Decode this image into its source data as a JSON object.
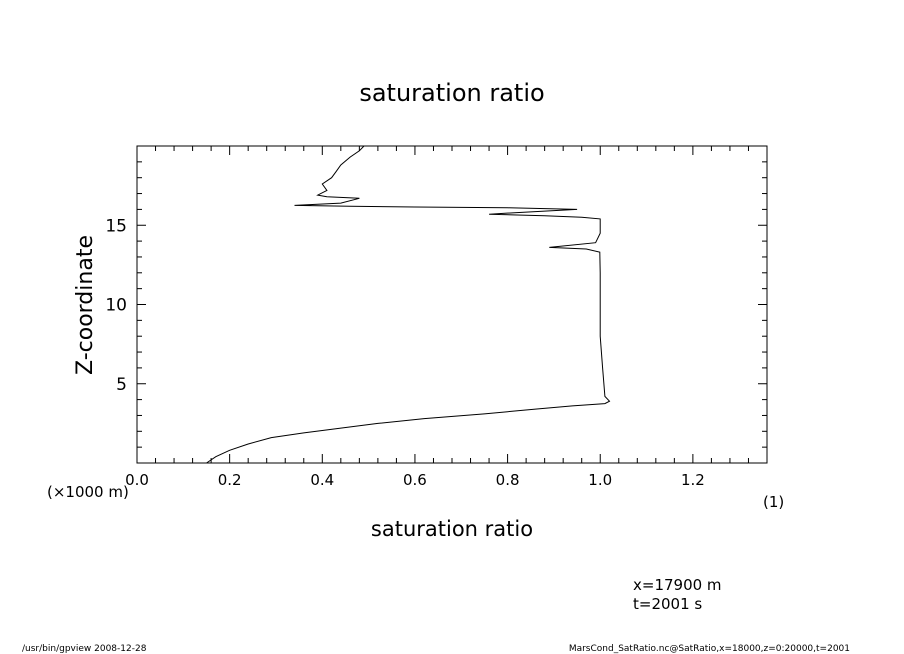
{
  "chart_data": {
    "type": "line",
    "title": "saturation ratio",
    "xlabel": "saturation ratio",
    "ylabel": "Z-coordinate",
    "x_unit_note": "(1)",
    "y_unit_note": "(×1000 m)",
    "xlim": [
      0.0,
      1.36
    ],
    "ylim": [
      0.0,
      20.0
    ],
    "x_ticks": [
      0.0,
      0.2,
      0.4,
      0.6,
      0.8,
      1.0,
      1.2
    ],
    "x_tick_labels": [
      "0.0",
      "0.2",
      "0.4",
      "0.6",
      "0.8",
      "1.0",
      "1.2"
    ],
    "y_ticks": [
      5,
      10,
      15
    ],
    "y_tick_labels": [
      "5",
      "10",
      "15"
    ],
    "grid": false,
    "series": [
      {
        "points": [
          [
            0.15,
            0.0
          ],
          [
            0.17,
            0.4
          ],
          [
            0.2,
            0.8
          ],
          [
            0.24,
            1.2
          ],
          [
            0.29,
            1.6
          ],
          [
            0.36,
            1.9
          ],
          [
            0.44,
            2.2
          ],
          [
            0.52,
            2.5
          ],
          [
            0.62,
            2.8
          ],
          [
            0.75,
            3.1
          ],
          [
            0.86,
            3.4
          ],
          [
            0.94,
            3.6
          ],
          [
            1.01,
            3.75
          ],
          [
            1.02,
            3.9
          ],
          [
            1.01,
            4.2
          ],
          [
            1.005,
            6.0
          ],
          [
            1.0,
            8.0
          ],
          [
            1.0,
            10.0
          ],
          [
            1.0,
            12.0
          ],
          [
            0.999,
            13.3
          ],
          [
            0.97,
            13.5
          ],
          [
            0.89,
            13.6
          ],
          [
            0.99,
            13.9
          ],
          [
            1.0,
            14.5
          ],
          [
            1.0,
            15.0
          ],
          [
            1.0,
            15.4
          ],
          [
            0.96,
            15.5
          ],
          [
            0.88,
            15.6
          ],
          [
            0.76,
            15.7
          ],
          [
            0.82,
            15.8
          ],
          [
            0.95,
            16.0
          ],
          [
            0.8,
            16.1
          ],
          [
            0.6,
            16.15
          ],
          [
            0.46,
            16.2
          ],
          [
            0.34,
            16.25
          ],
          [
            0.44,
            16.4
          ],
          [
            0.48,
            16.7
          ],
          [
            0.41,
            16.8
          ],
          [
            0.39,
            16.9
          ],
          [
            0.41,
            17.2
          ],
          [
            0.4,
            17.6
          ],
          [
            0.42,
            18.0
          ],
          [
            0.43,
            18.4
          ],
          [
            0.44,
            18.8
          ],
          [
            0.46,
            19.3
          ],
          [
            0.48,
            19.7
          ],
          [
            0.49,
            20.0
          ]
        ]
      }
    ]
  },
  "annotations": {
    "slice_x": "x=17900  m",
    "slice_t": "t=2001  s"
  },
  "footer": {
    "left": "/usr/bin/gpview   2008-12-28",
    "right": "MarsCond_SatRatio.nc@SatRatio,x=18000,z=0:20000,t=2001"
  }
}
